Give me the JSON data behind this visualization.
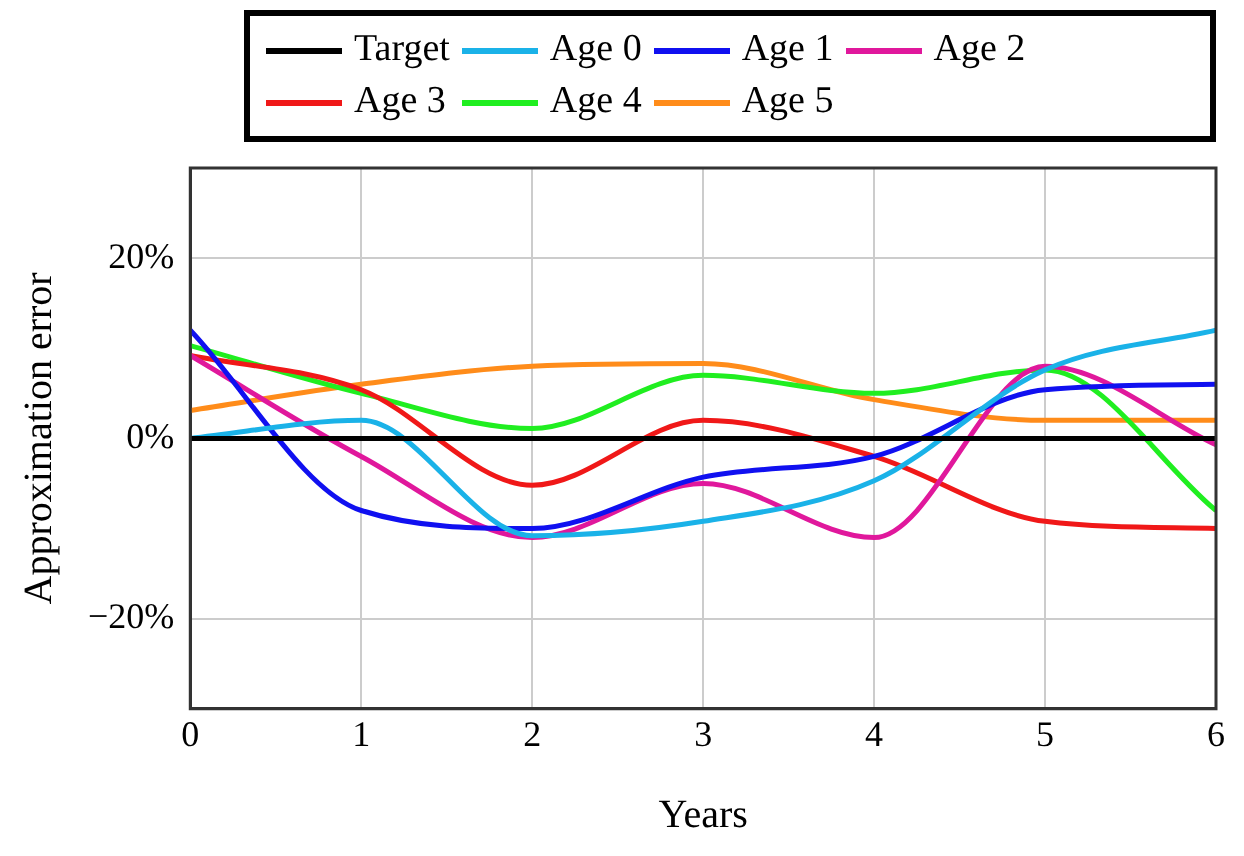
{
  "chart_data": {
    "type": "line",
    "xlabel": "Years",
    "ylabel": "Approximation error",
    "x": [
      0,
      1,
      2,
      3,
      4,
      5,
      6
    ],
    "xlim": [
      0,
      6
    ],
    "xticks": [
      0,
      1,
      2,
      3,
      4,
      5,
      6
    ],
    "ylim": [
      -30,
      30
    ],
    "yticks": [
      {
        "value": -20,
        "label": "−20%"
      },
      {
        "value": 0,
        "label": "0%"
      },
      {
        "value": 20,
        "label": "20%"
      }
    ],
    "grid": true,
    "legend": "top",
    "marker": "none",
    "line_style": "solid",
    "series": [
      {
        "name": "Target",
        "color": "#000000",
        "values": [
          0,
          0,
          0,
          0,
          0,
          0,
          0
        ]
      },
      {
        "name": "Age 0",
        "color": "#1ab2e8",
        "values": [
          0,
          2,
          -10.8,
          -9.2,
          -4.7,
          7.6,
          12
        ]
      },
      {
        "name": "Age 1",
        "color": "#1010f0",
        "values": [
          12,
          -8,
          -10,
          -4.3,
          -2,
          5.4,
          6
        ]
      },
      {
        "name": "Age 2",
        "color": "#e0189c",
        "values": [
          9.2,
          -2,
          -11,
          -5,
          -11,
          8,
          -0.7
        ]
      },
      {
        "name": "Age 3",
        "color": "#f01818",
        "values": [
          9.2,
          5.4,
          -5.2,
          2,
          -2,
          -9.2,
          -10
        ]
      },
      {
        "name": "Age 4",
        "color": "#20ee20",
        "values": [
          10.3,
          5,
          1.1,
          7,
          5,
          7.6,
          -8
        ]
      },
      {
        "name": "Age 5",
        "color": "#ff8c1a",
        "values": [
          3.1,
          6,
          8,
          8.3,
          4.3,
          2,
          2
        ]
      }
    ]
  }
}
